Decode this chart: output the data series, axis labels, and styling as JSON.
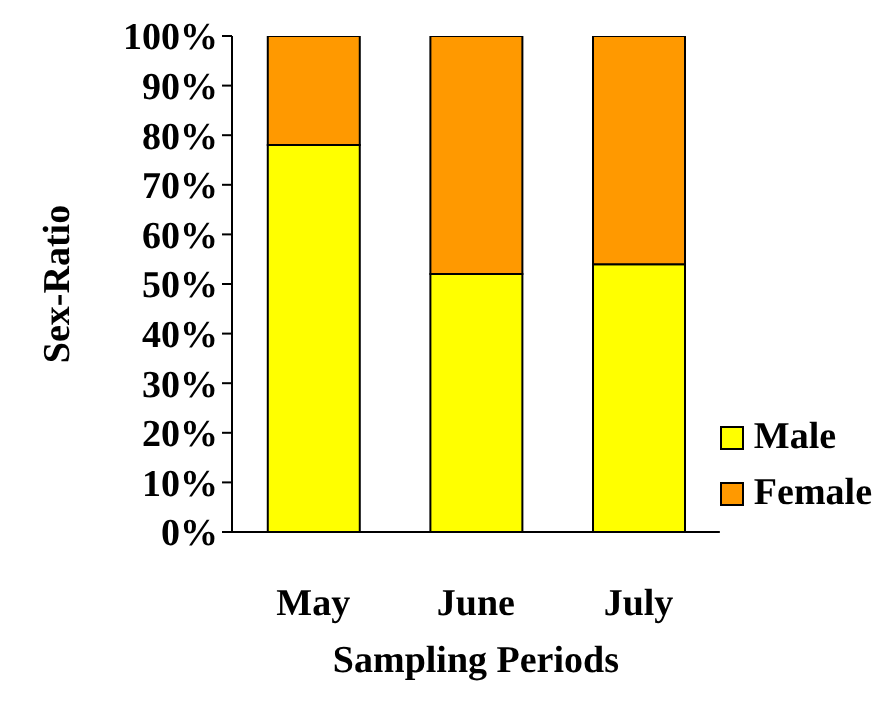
{
  "chart_data": {
    "type": "bar",
    "stacked": true,
    "xlabel": "Sampling Periods",
    "ylabel": "Sex-Ratio",
    "categories": [
      "May",
      "June",
      "July"
    ],
    "series": [
      {
        "name": "Male",
        "color": "#ffff00",
        "values": [
          78,
          52,
          54
        ]
      },
      {
        "name": "Female",
        "color": "#ff9900",
        "values": [
          22,
          48,
          46
        ]
      }
    ],
    "ylim": [
      0,
      100
    ],
    "yticks": [
      {
        "value": 0,
        "label": "0%"
      },
      {
        "value": 10,
        "label": "10%"
      },
      {
        "value": 20,
        "label": "20%"
      },
      {
        "value": 30,
        "label": "30%"
      },
      {
        "value": 40,
        "label": "40%"
      },
      {
        "value": 50,
        "label": "50%"
      },
      {
        "value": 60,
        "label": "60%"
      },
      {
        "value": 70,
        "label": "70%"
      },
      {
        "value": 80,
        "label": "80%"
      },
      {
        "value": 90,
        "label": "90%"
      },
      {
        "value": 100,
        "label": "100%"
      }
    ],
    "grid": false,
    "legend": "right"
  }
}
